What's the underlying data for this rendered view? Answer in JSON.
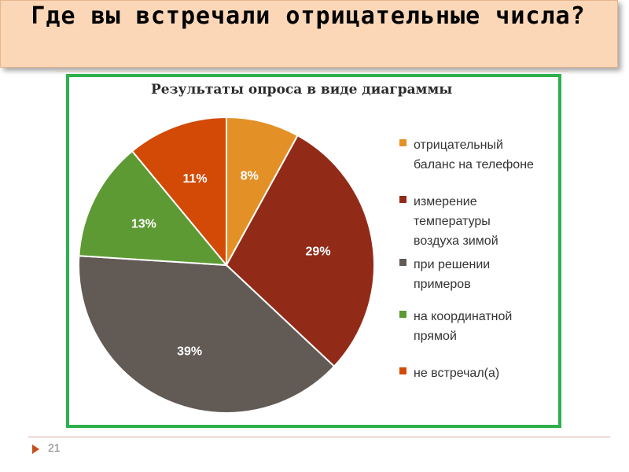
{
  "slide": {
    "title": "Где вы встречали отрицательные числа?",
    "page_number": "21"
  },
  "chart_data": {
    "type": "pie",
    "title": "Результаты опроса в виде диаграммы",
    "slices": [
      {
        "label": "отрицательный\nбаланс на телефоне",
        "value": 8,
        "value_label": "8%",
        "color": "#e39126"
      },
      {
        "label": "измерение\nтемпературы\nвоздуха зимой",
        "value": 29,
        "value_label": "29%",
        "color": "#922a18"
      },
      {
        "label": "при решении\nпримеров",
        "value": 39,
        "value_label": "39%",
        "color": "#625a55"
      },
      {
        "label": "на координатной\nпрямой",
        "value": 13,
        "value_label": "13%",
        "color": "#5d9a34"
      },
      {
        "label": "не встречал(а)",
        "value": 11,
        "value_label": "11%",
        "color": "#d24a06"
      }
    ],
    "legend_position": "right"
  }
}
